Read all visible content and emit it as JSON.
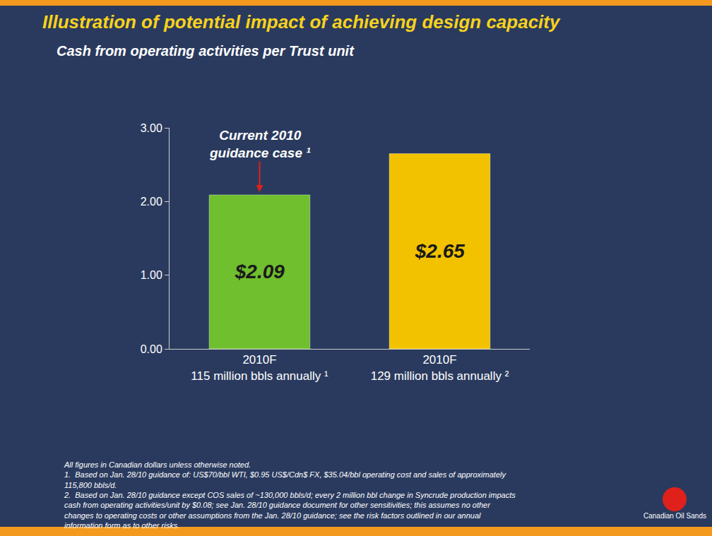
{
  "chart_data": {
    "type": "bar",
    "title": "Illustration of potential impact of achieving design capacity",
    "subtitle": "Cash from operating activities per Trust unit",
    "categories": [
      "2010F\n115 million bbls annually ¹",
      "2010F\n129 million bbls annually ²"
    ],
    "values": [
      2.09,
      2.65
    ],
    "value_labels": [
      "$2.09",
      "$2.65"
    ],
    "colors": [
      "#6fbf2e",
      "#f2c200"
    ],
    "data_labels": true,
    "grid": false,
    "ylim": [
      0,
      3
    ],
    "yticks": [
      {
        "value": 0,
        "label": "0.00"
      },
      {
        "value": 1,
        "label": "1.00"
      },
      {
        "value": 2,
        "label": "2.00"
      },
      {
        "value": 3,
        "label": "3.00"
      }
    ],
    "annotation": {
      "category": 0,
      "text": "Current 2010\nguidance case ¹"
    },
    "notes": [
      "All figures in Canadian dollars unless otherwise noted.",
      "1.  Based on Jan. 28/10 guidance of: US$70/bbl WTI, $0.95 US$/Cdn$ FX, $35.04/bbl operating cost and sales of approximately 115,800 bbls/d.",
      "2.  Based on Jan. 28/10 guidance except COS sales of ~130,000 bbls/d; every 2 million bbl change in Syncrude production impacts cash from operating activities/unit by $0.08; see Jan. 28/10 guidance document for other sensitivities; this assumes no other changes to operating costs or other assumptions from the Jan. 28/10 guidance; see the risk factors outlined in our annual information form as to other risks."
    ],
    "logo": "Canadian Oil Sands"
  }
}
